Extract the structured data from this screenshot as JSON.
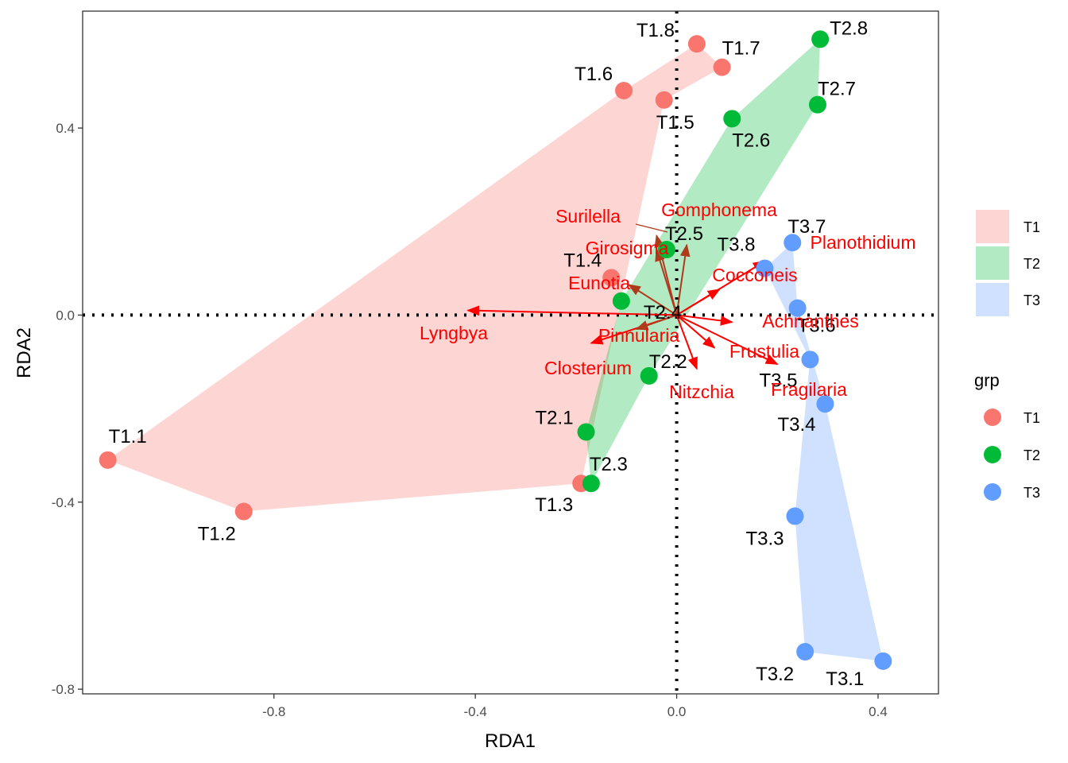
{
  "chart_data": {
    "type": "scatter",
    "xlabel": "RDA1",
    "ylabel": "RDA2",
    "xlim": [
      -1.18,
      0.52
    ],
    "ylim": [
      -0.81,
      0.65
    ],
    "x_ticks": [
      -0.8,
      -0.4,
      0.0,
      0.4
    ],
    "y_ticks": [
      -0.8,
      -0.4,
      0.0,
      0.4
    ],
    "x_tick_labels": [
      "-0.8",
      "-0.4",
      "0.0",
      "0.4"
    ],
    "y_tick_labels": [
      "-0.8",
      "-0.4",
      "0.0",
      "0.4"
    ],
    "grid": false,
    "reference_lines": {
      "x": 0,
      "y": 0,
      "style": "dotted"
    },
    "groups": [
      {
        "name": "T1",
        "point_color": "#F8766D",
        "hull_color": "#F8766D"
      },
      {
        "name": "T2",
        "point_color": "#00BA38",
        "hull_color": "#00BA38"
      },
      {
        "name": "T3",
        "point_color": "#619CFF",
        "hull_color": "#619CFF"
      }
    ],
    "points": [
      {
        "label": "T1.1",
        "group": "T1",
        "x": -1.13,
        "y": -0.31
      },
      {
        "label": "T1.2",
        "group": "T1",
        "x": -0.86,
        "y": -0.42
      },
      {
        "label": "T1.3",
        "group": "T1",
        "x": -0.19,
        "y": -0.36
      },
      {
        "label": "T1.4",
        "group": "T1",
        "x": -0.13,
        "y": 0.08
      },
      {
        "label": "T1.5",
        "group": "T1",
        "x": -0.025,
        "y": 0.46
      },
      {
        "label": "T1.6",
        "group": "T1",
        "x": -0.105,
        "y": 0.48
      },
      {
        "label": "T1.7",
        "group": "T1",
        "x": 0.09,
        "y": 0.53
      },
      {
        "label": "T1.8",
        "group": "T1",
        "x": 0.04,
        "y": 0.58
      },
      {
        "label": "T2.1",
        "group": "T2",
        "x": -0.18,
        "y": -0.25
      },
      {
        "label": "T2.2",
        "group": "T2",
        "x": -0.055,
        "y": -0.13
      },
      {
        "label": "T2.3",
        "group": "T2",
        "x": -0.17,
        "y": -0.36
      },
      {
        "label": "T2.4",
        "group": "T2",
        "x": -0.11,
        "y": 0.03
      },
      {
        "label": "T2.5",
        "group": "T2",
        "x": -0.02,
        "y": 0.14
      },
      {
        "label": "T2.6",
        "group": "T2",
        "x": 0.11,
        "y": 0.42
      },
      {
        "label": "T2.7",
        "group": "T2",
        "x": 0.28,
        "y": 0.45
      },
      {
        "label": "T2.8",
        "group": "T2",
        "x": 0.285,
        "y": 0.59
      },
      {
        "label": "T3.1",
        "group": "T3",
        "x": 0.41,
        "y": -0.74
      },
      {
        "label": "T3.2",
        "group": "T3",
        "x": 0.255,
        "y": -0.72
      },
      {
        "label": "T3.3",
        "group": "T3",
        "x": 0.235,
        "y": -0.43
      },
      {
        "label": "T3.4",
        "group": "T3",
        "x": 0.295,
        "y": -0.19
      },
      {
        "label": "T3.5",
        "group": "T3",
        "x": 0.265,
        "y": -0.095
      },
      {
        "label": "T3.6",
        "group": "T3",
        "x": 0.24,
        "y": 0.015
      },
      {
        "label": "T3.7",
        "group": "T3",
        "x": 0.23,
        "y": 0.155
      },
      {
        "label": "T3.8",
        "group": "T3",
        "x": 0.175,
        "y": 0.1
      }
    ],
    "hulls": [
      {
        "group": "T1",
        "points": [
          "T1.1",
          "T1.6",
          "T1.8",
          "T1.7",
          "T1.5",
          "T1.3",
          "T1.2"
        ]
      },
      {
        "group": "T2",
        "points": [
          "T2.1",
          "T2.4",
          "T2.6",
          "T2.8",
          "T2.7",
          "T2.2",
          "T2.3"
        ]
      },
      {
        "group": "T3",
        "points": [
          "T3.8",
          "T3.7",
          "T3.6",
          "T3.4",
          "T3.1",
          "T3.2",
          "T3.3",
          "T3.5"
        ]
      }
    ],
    "species": [
      {
        "label": "Lyngbya",
        "x": -0.415,
        "y": 0.01,
        "color": "#FF0000"
      },
      {
        "label": "Surilella",
        "x": -0.04,
        "y": 0.17,
        "color": "#B03A1C"
      },
      {
        "label": "Gomphonema",
        "x": 0.02,
        "y": 0.15,
        "color": "#B03A1C"
      },
      {
        "label": "Girosigma",
        "x": -0.04,
        "y": 0.14,
        "color": "#B03A1C"
      },
      {
        "label": "Eunotia",
        "x": -0.095,
        "y": 0.065,
        "color": "#B03A1C"
      },
      {
        "label": "Planothidium",
        "x": 0.175,
        "y": 0.115,
        "color": "#FF0000"
      },
      {
        "label": "Cocconeis",
        "x": 0.085,
        "y": 0.055,
        "color": "#FF0000"
      },
      {
        "label": "Achnanthes",
        "x": 0.11,
        "y": -0.015,
        "color": "#FF0000"
      },
      {
        "label": "Frustulia",
        "x": 0.075,
        "y": -0.07,
        "color": "#FF0000"
      },
      {
        "label": "Fragilaria",
        "x": 0.2,
        "y": -0.105,
        "color": "#FF0000"
      },
      {
        "label": "Nitzchia",
        "x": 0.04,
        "y": -0.115,
        "color": "#FF0000"
      },
      {
        "label": "Closterium",
        "x": -0.17,
        "y": -0.06,
        "color": "#FF0000"
      },
      {
        "label": "Pinnularia",
        "x": -0.08,
        "y": -0.03,
        "color": "#B03A1C"
      }
    ],
    "legend": {
      "fill_legend": {
        "entries": [
          "T1",
          "T2",
          "T3"
        ],
        "placement": "right"
      },
      "point_legend": {
        "title": "grp",
        "entries": [
          "T1",
          "T2",
          "T3"
        ],
        "placement": "right"
      }
    }
  }
}
